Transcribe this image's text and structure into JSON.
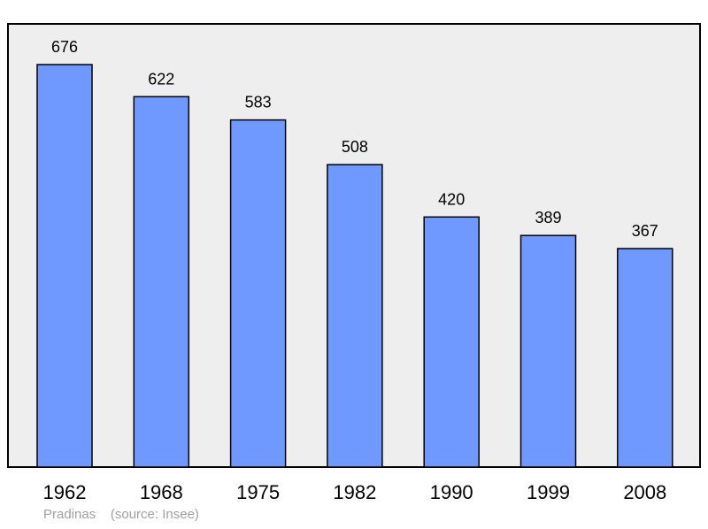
{
  "chart_data": {
    "type": "bar",
    "categories": [
      "1962",
      "1968",
      "1975",
      "1982",
      "1990",
      "1999",
      "2008"
    ],
    "values": [
      676,
      622,
      583,
      508,
      420,
      389,
      367
    ],
    "data_labels": [
      "676",
      "622",
      "583",
      "508",
      "420",
      "389",
      "367"
    ],
    "title": "",
    "xlabel": "",
    "ylabel": "",
    "ylim": [
      0,
      676
    ],
    "grid": false,
    "legend": "none"
  },
  "footer": {
    "place": "Pradinas",
    "source": "(source: Insee)"
  },
  "colors": {
    "bar_fill": "#7099ff",
    "plot_background": "#eeeeee",
    "frame": "#000000",
    "footer_text": "#a0a0a0"
  }
}
